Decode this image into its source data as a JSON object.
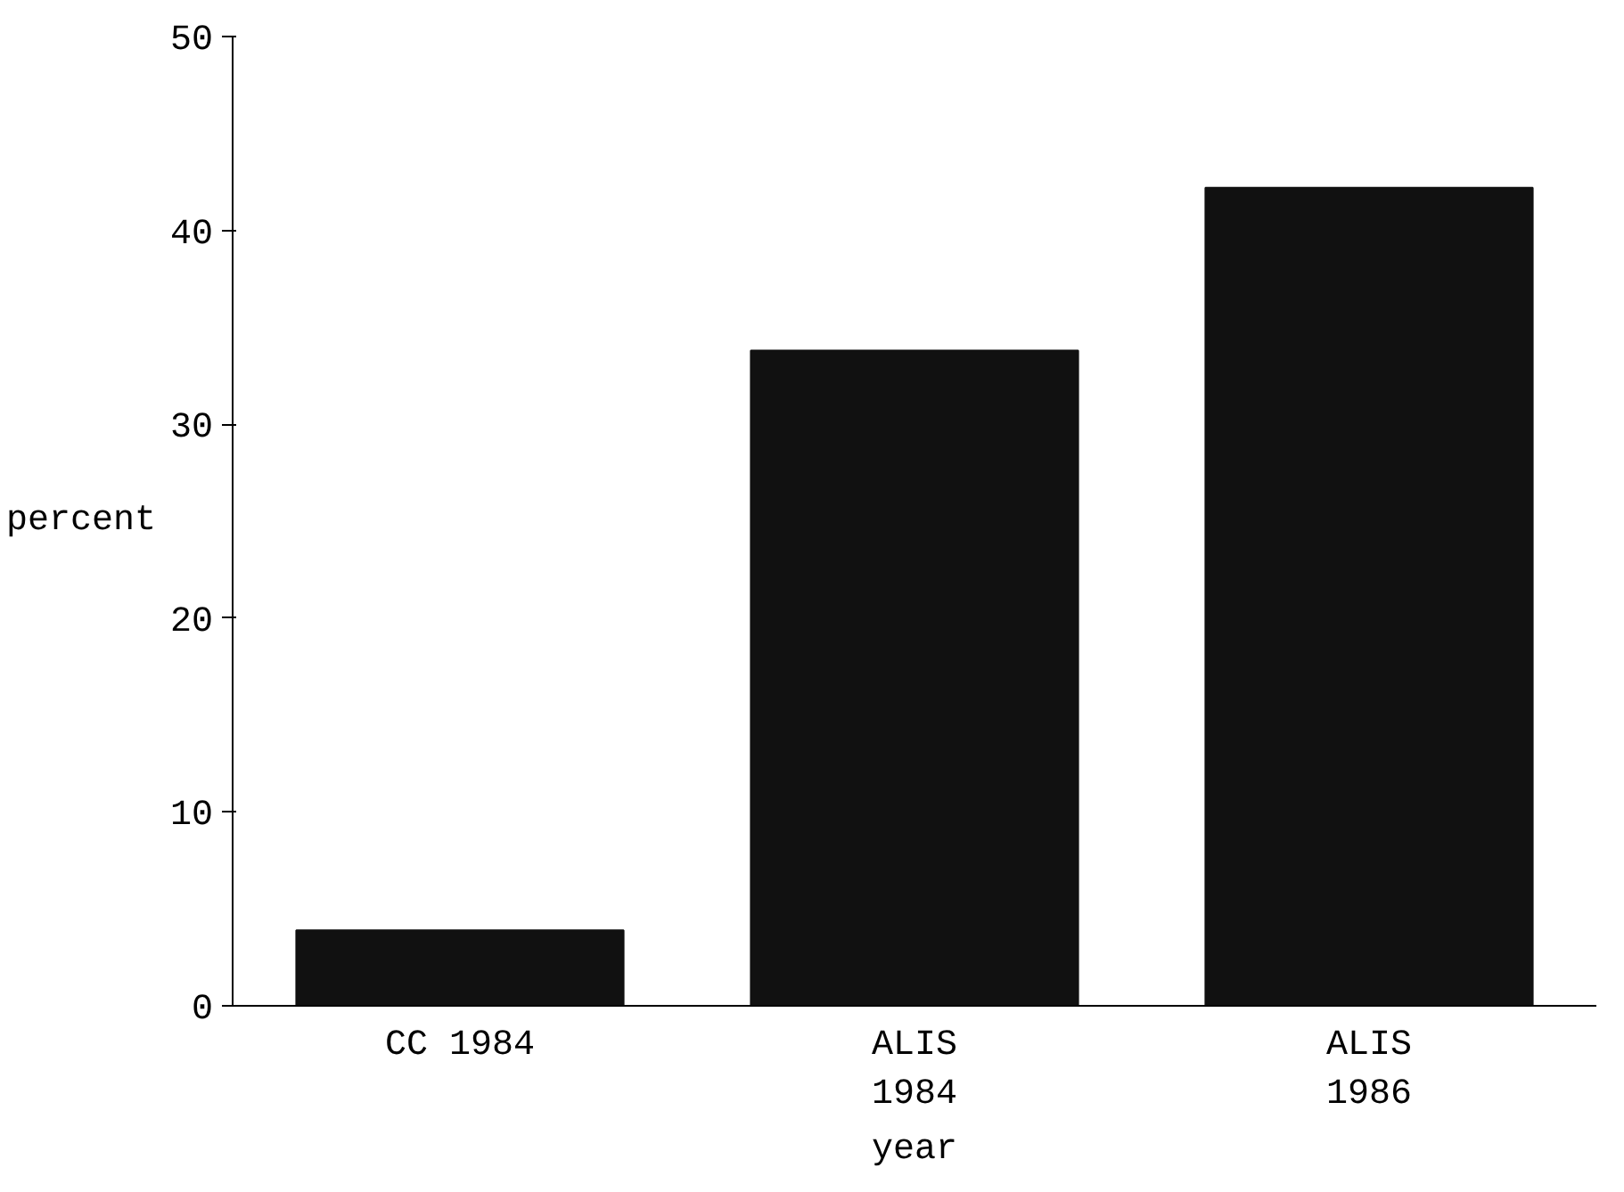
{
  "chart_data": {
    "type": "bar",
    "categories": [
      "CC 1984",
      "ALIS\n1984",
      "ALIS\n1986"
    ],
    "values": [
      3.9,
      33.8,
      42.2
    ],
    "color": "#111111",
    "xlabel": "year",
    "ylabel": "percent",
    "ylim": [
      0,
      50
    ],
    "yticks": [
      0,
      10,
      20,
      30,
      40,
      50
    ],
    "grid": false
  }
}
